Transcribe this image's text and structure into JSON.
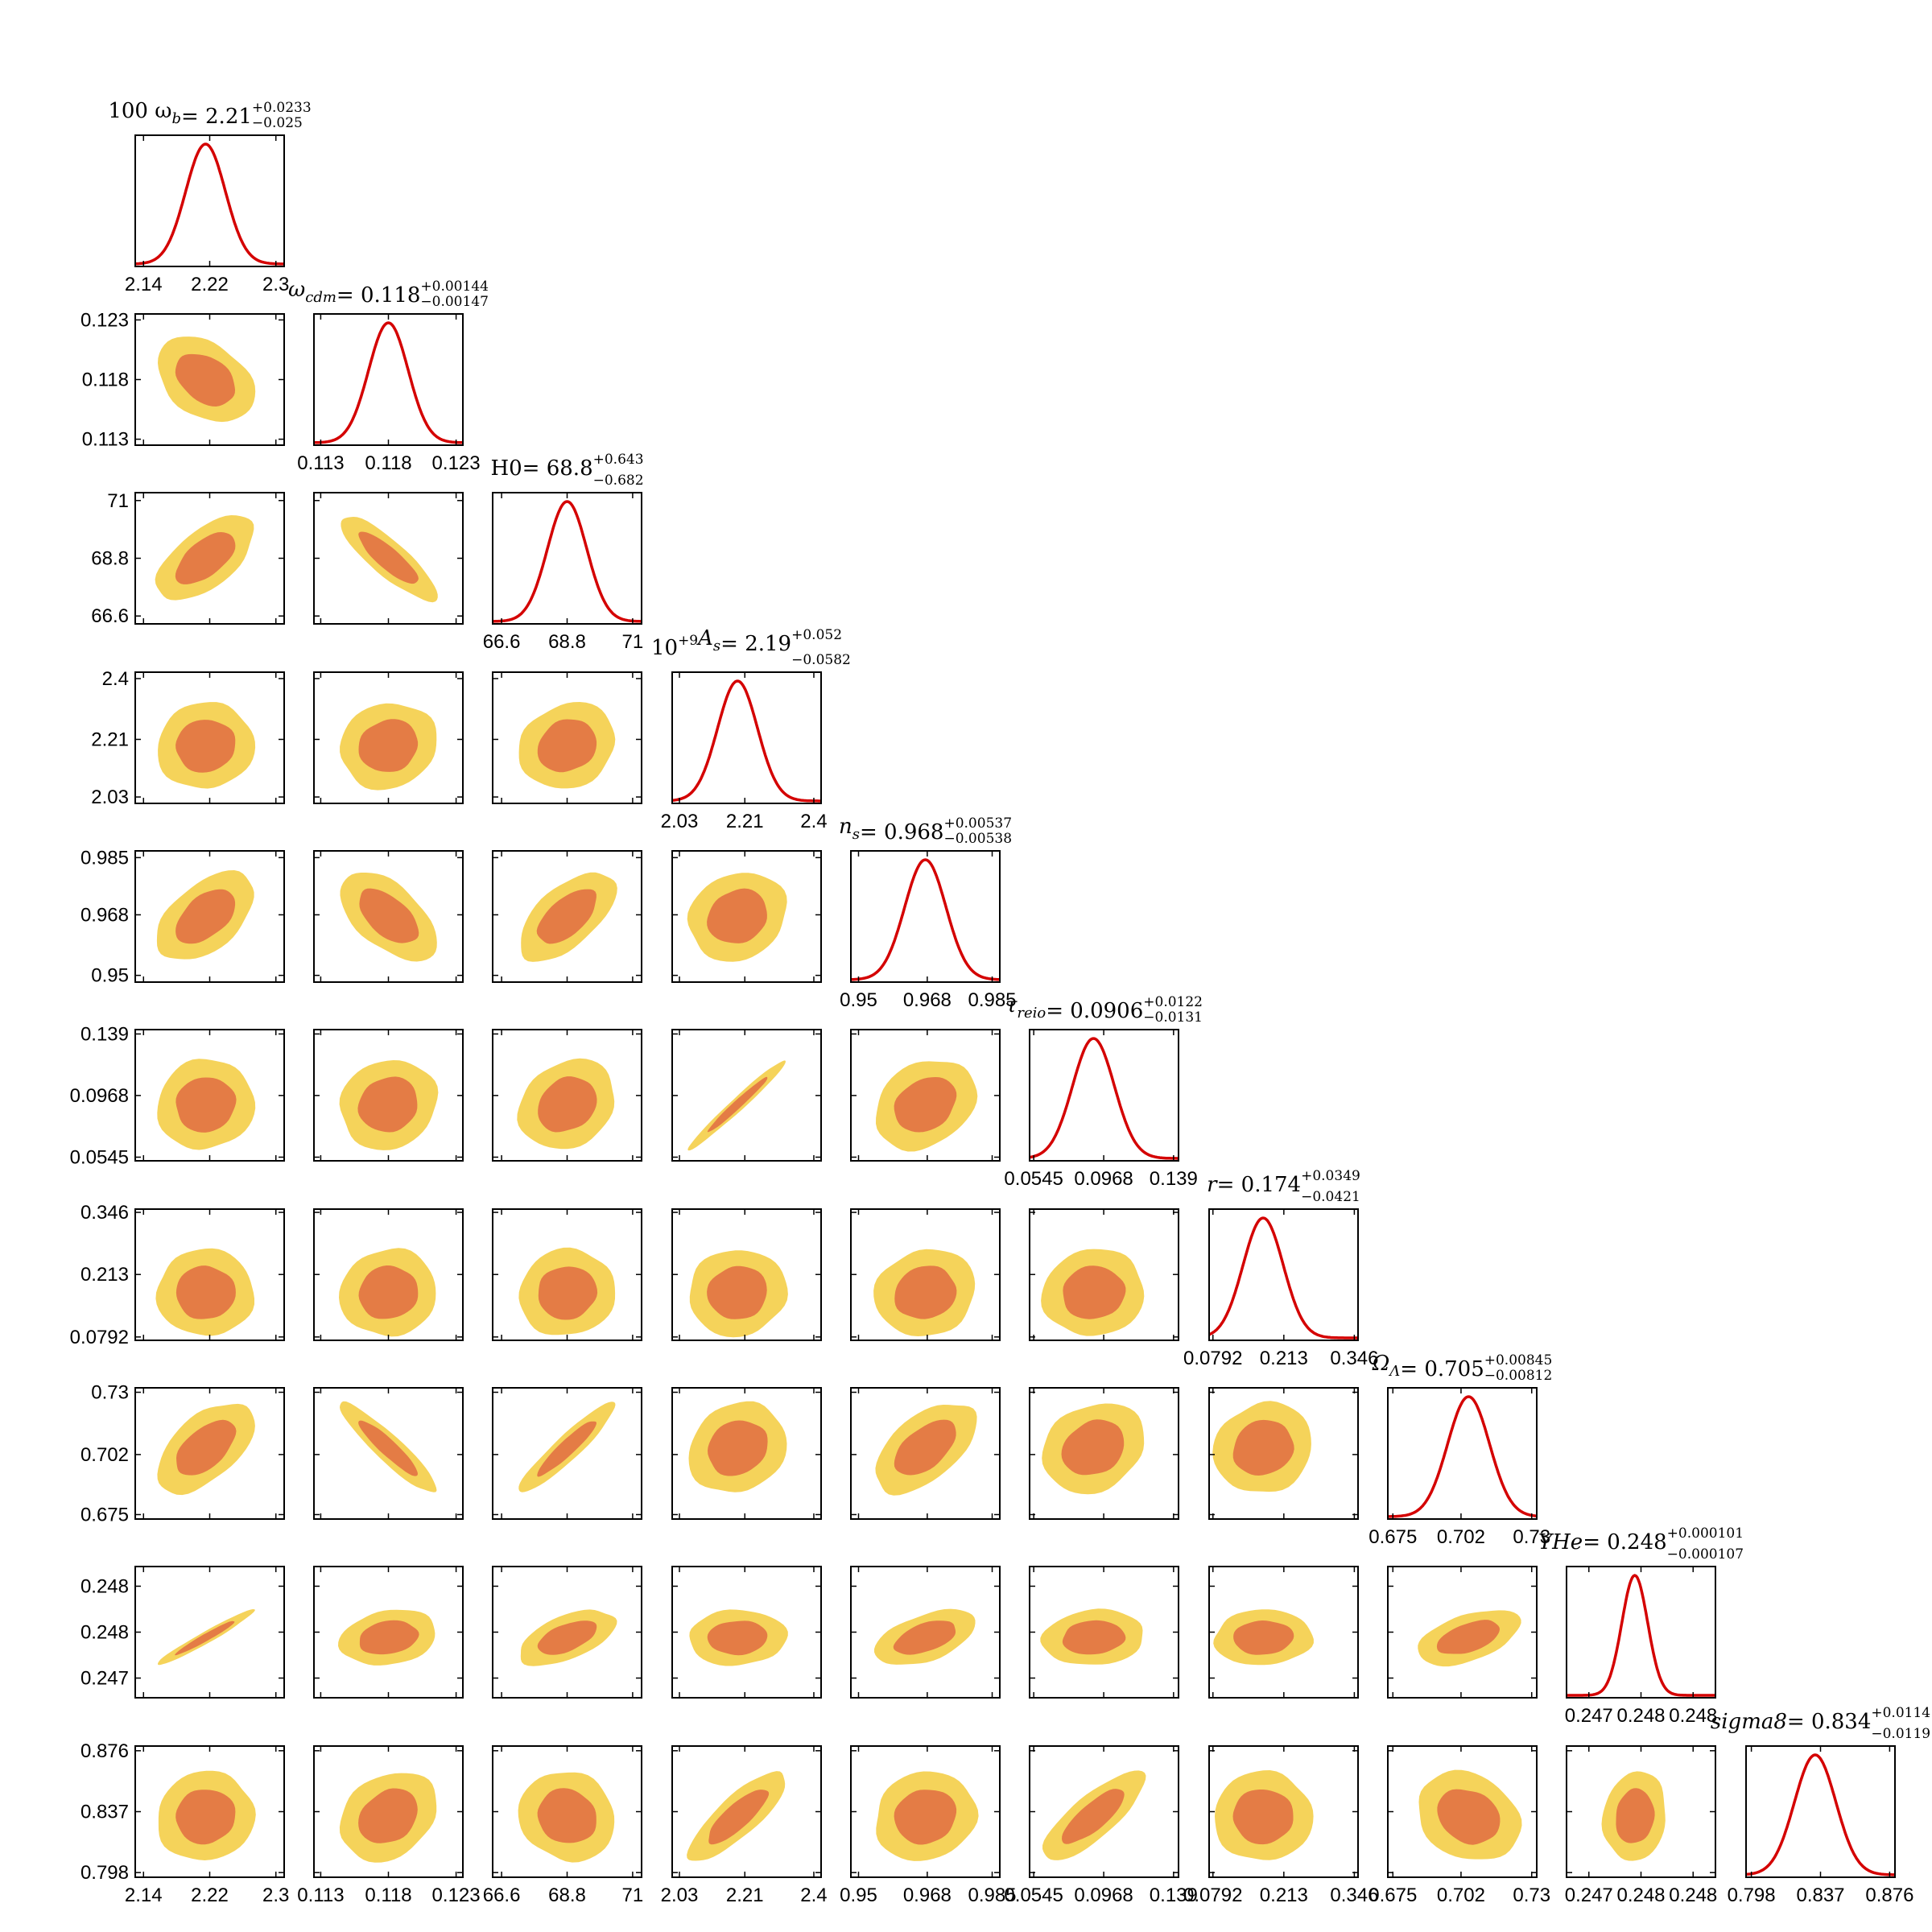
{
  "chart_data": {
    "type": "scatter",
    "subtype": "corner-plot",
    "colors": {
      "outer_contour": "#f5d35a",
      "inner_contour": "#e47c45",
      "posterior_line": "#d40000"
    },
    "parameters": [
      {
        "symbol": "100 ω",
        "sub": "b",
        "sup": "",
        "value": "2.21",
        "plus": "+0.0233",
        "minus": "−0.025",
        "ticks": [
          "2.14",
          "2.22",
          "2.3"
        ],
        "range": [
          2.13,
          2.31
        ],
        "mean": 2.215,
        "sd": 0.024
      },
      {
        "symbol": "ω",
        "sub": "cdm",
        "sup": "",
        "value": "0.118",
        "plus": "+0.00144",
        "minus": "−0.00147",
        "ticks": [
          "0.113",
          "0.118",
          "0.123"
        ],
        "range": [
          0.1125,
          0.1235
        ],
        "mean": 0.118,
        "sd": 0.00146
      },
      {
        "symbol": "H0",
        "sub": "",
        "sup": "",
        "value": "68.8",
        "plus": "+0.643",
        "minus": "−0.682",
        "ticks": [
          "66.6",
          "68.8",
          "71"
        ],
        "range": [
          66.3,
          71.3
        ],
        "mean": 68.8,
        "sd": 0.66
      },
      {
        "symbol": "10",
        "sub": "",
        "sup": "+9",
        "tail": "A",
        "tail_sub": "s",
        "value": "2.19",
        "plus": "+0.052",
        "minus": "−0.0582",
        "ticks": [
          "2.03",
          "2.21",
          "2.4"
        ],
        "range": [
          2.01,
          2.42
        ],
        "mean": 2.19,
        "sd": 0.055
      },
      {
        "symbol": "n",
        "sub": "s",
        "sup": "",
        "value": "0.968",
        "plus": "+0.00537",
        "minus": "−0.00538",
        "ticks": [
          "0.95",
          "0.968",
          "0.985"
        ],
        "range": [
          0.948,
          0.987
        ],
        "mean": 0.9675,
        "sd": 0.0054
      },
      {
        "symbol": "τ",
        "sub": "reio",
        "sup": "",
        "value": "0.0906",
        "plus": "+0.0122",
        "minus": "−0.0131",
        "ticks": [
          "0.0545",
          "0.0968",
          "0.139"
        ],
        "range": [
          0.052,
          0.142
        ],
        "mean": 0.0906,
        "sd": 0.0126
      },
      {
        "symbol": "r",
        "sub": "",
        "sup": "",
        "value": "0.174",
        "plus": "+0.0349",
        "minus": "−0.0421",
        "ticks": [
          "0.0792",
          "0.213",
          "0.346"
        ],
        "range": [
          0.072,
          0.353
        ],
        "mean": 0.174,
        "sd": 0.038
      },
      {
        "symbol": "Ω",
        "sub": "Λ",
        "sup": "",
        "value": "0.705",
        "plus": "+0.00845",
        "minus": "−0.00812",
        "ticks": [
          "0.675",
          "0.702",
          "0.73"
        ],
        "range": [
          0.673,
          0.732
        ],
        "mean": 0.705,
        "sd": 0.0083
      },
      {
        "symbol": "YHe",
        "sub": "",
        "sup": "",
        "value": "0.248",
        "plus": "+0.000101",
        "minus": "−0.000107",
        "ticks": [
          "0.247",
          "0.248",
          "0.248"
        ],
        "range": [
          0.24725,
          0.24845
        ],
        "mean": 0.2478,
        "sd": 0.000104
      },
      {
        "symbol": "sigma8",
        "sub": "",
        "sup": "",
        "value": "0.834",
        "plus": "+0.0114",
        "minus": "−0.0119",
        "ticks": [
          "0.798",
          "0.837",
          "0.876"
        ],
        "range": [
          0.795,
          0.879
        ],
        "mean": 0.834,
        "sd": 0.0117
      }
    ],
    "correlations": [
      [
        1.0,
        -0.35,
        0.6,
        0.05,
        0.5,
        0.05,
        0.0,
        0.55,
        0.97,
        0.05
      ],
      [
        -0.35,
        1.0,
        -0.85,
        0.1,
        -0.55,
        0.1,
        0.05,
        -0.92,
        0.2,
        0.25
      ],
      [
        0.6,
        -0.85,
        1.0,
        0.15,
        0.6,
        0.2,
        0.05,
        0.93,
        0.55,
        -0.1
      ],
      [
        0.05,
        0.1,
        0.15,
        1.0,
        0.15,
        0.98,
        0.05,
        0.15,
        0.05,
        0.82
      ],
      [
        0.5,
        -0.55,
        0.6,
        0.15,
        1.0,
        0.25,
        0.1,
        0.55,
        0.5,
        0.1
      ],
      [
        0.05,
        0.1,
        0.2,
        0.98,
        0.25,
        1.0,
        0.05,
        0.2,
        0.1,
        0.8
      ],
      [
        0.0,
        0.05,
        0.05,
        0.05,
        0.1,
        0.05,
        1.0,
        0.1,
        0.05,
        0.0
      ],
      [
        0.55,
        -0.92,
        0.93,
        0.15,
        0.55,
        0.2,
        0.1,
        1.0,
        0.5,
        -0.2
      ],
      [
        0.97,
        0.2,
        0.55,
        0.05,
        0.5,
        0.1,
        0.05,
        0.5,
        1.0,
        0.1
      ],
      [
        0.05,
        0.25,
        -0.1,
        0.82,
        0.1,
        0.8,
        0.0,
        -0.2,
        0.1,
        1.0
      ]
    ]
  }
}
